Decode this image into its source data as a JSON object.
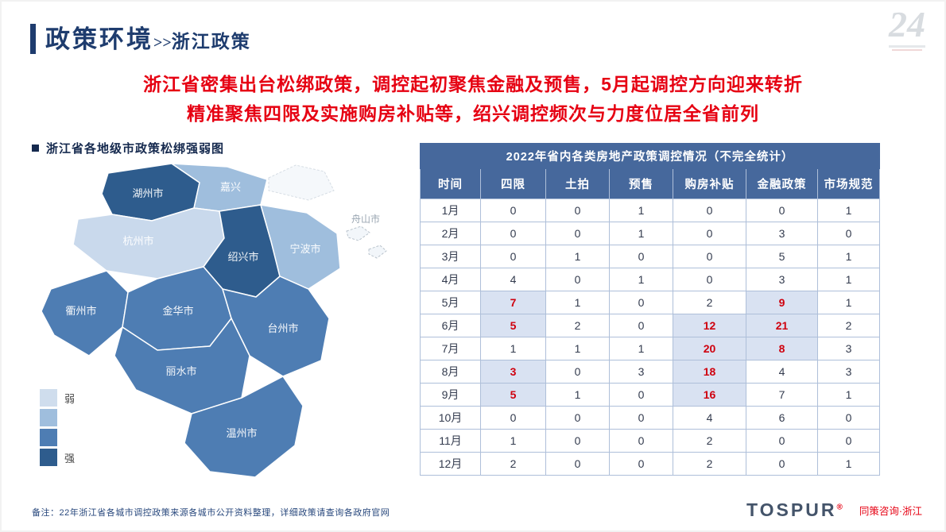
{
  "page": {
    "title_main": "政策环境",
    "title_sep": ">>",
    "title_sub": "浙江政策",
    "watermark": "24",
    "headline_line1": "浙江省密集出台松绑政策，调控起初聚焦金融及预售，5月起调控方向迎来转折",
    "headline_line2": "精准聚焦四限及实施购房补贴等，绍兴调控频次与力度位居全省前列",
    "footnote": "备注：22年浙江省各城市调控政策来源各城市公开资料整理，详细政策请查询各政府官网"
  },
  "map": {
    "section_title": "浙江省各地级市政策松绑强弱图",
    "legend": {
      "weak_label": "弱",
      "strong_label": "强",
      "steps": [
        "#cfdded",
        "#9fbedd",
        "#4e7db3",
        "#2e5c8d"
      ]
    },
    "palette": {
      "strong": "#2e5c8d",
      "medium": "#4e7db3",
      "light": "#9fbedd",
      "pale": "#c9d9ec",
      "faint": "#f2f6fa"
    },
    "cities": [
      {
        "id": "huzhou",
        "name": "湖州市",
        "level": "strong"
      },
      {
        "id": "jiaxing",
        "name": "嘉兴",
        "level": "light"
      },
      {
        "id": "hangzhou",
        "name": "杭州市",
        "level": "pale"
      },
      {
        "id": "shaoxing",
        "name": "绍兴市",
        "level": "strong"
      },
      {
        "id": "ningbo",
        "name": "宁波市",
        "level": "light"
      },
      {
        "id": "zhoushan",
        "name": "舟山市",
        "level": "faint"
      },
      {
        "id": "quzhou",
        "name": "衢州市",
        "level": "medium"
      },
      {
        "id": "jinhua",
        "name": "金华市",
        "level": "medium"
      },
      {
        "id": "taizhou",
        "name": "台州市",
        "level": "medium"
      },
      {
        "id": "lishui",
        "name": "丽水市",
        "level": "medium"
      },
      {
        "id": "wenzhou",
        "name": "温州市",
        "level": "medium"
      }
    ]
  },
  "table": {
    "title": "2022年省内各类房地产政策调控情况（不完全统计）",
    "columns": [
      "时间",
      "四限",
      "土拍",
      "预售",
      "购房补贴",
      "金融政策",
      "市场规范"
    ],
    "rows": [
      {
        "month": "1月",
        "values": [
          0,
          0,
          1,
          0,
          0,
          1
        ],
        "highlights": []
      },
      {
        "month": "2月",
        "values": [
          0,
          0,
          1,
          0,
          3,
          0
        ],
        "highlights": []
      },
      {
        "month": "3月",
        "values": [
          0,
          1,
          0,
          0,
          5,
          1
        ],
        "highlights": []
      },
      {
        "month": "4月",
        "values": [
          4,
          0,
          1,
          0,
          3,
          1
        ],
        "highlights": []
      },
      {
        "month": "5月",
        "values": [
          7,
          1,
          0,
          2,
          9,
          1
        ],
        "highlights": [
          0,
          4
        ]
      },
      {
        "month": "6月",
        "values": [
          5,
          2,
          0,
          12,
          21,
          2
        ],
        "highlights": [
          0,
          3,
          4
        ]
      },
      {
        "month": "7月",
        "values": [
          1,
          1,
          1,
          20,
          8,
          3
        ],
        "highlights": [
          3,
          4
        ]
      },
      {
        "month": "8月",
        "values": [
          3,
          0,
          3,
          18,
          4,
          3
        ],
        "highlights": [
          0,
          3
        ]
      },
      {
        "month": "9月",
        "values": [
          5,
          1,
          0,
          16,
          7,
          1
        ],
        "highlights": [
          0,
          3
        ]
      },
      {
        "month": "10月",
        "values": [
          0,
          0,
          0,
          4,
          6,
          0
        ],
        "highlights": []
      },
      {
        "month": "11月",
        "values": [
          1,
          0,
          0,
          2,
          0,
          0
        ],
        "highlights": []
      },
      {
        "month": "12月",
        "values": [
          2,
          0,
          0,
          2,
          0,
          1
        ],
        "highlights": []
      }
    ]
  },
  "logo": {
    "brand": "TOSPUR",
    "registered": "®",
    "subtitle": "同策咨询·浙江"
  },
  "colors": {
    "accent_navy": "#1e3c6e",
    "headline_red": "#e60012",
    "table_header_bg": "#46689c",
    "highlight_bg": "#d9e2f2",
    "highlight_text": "#cf000e",
    "border": "#aebfd9"
  }
}
